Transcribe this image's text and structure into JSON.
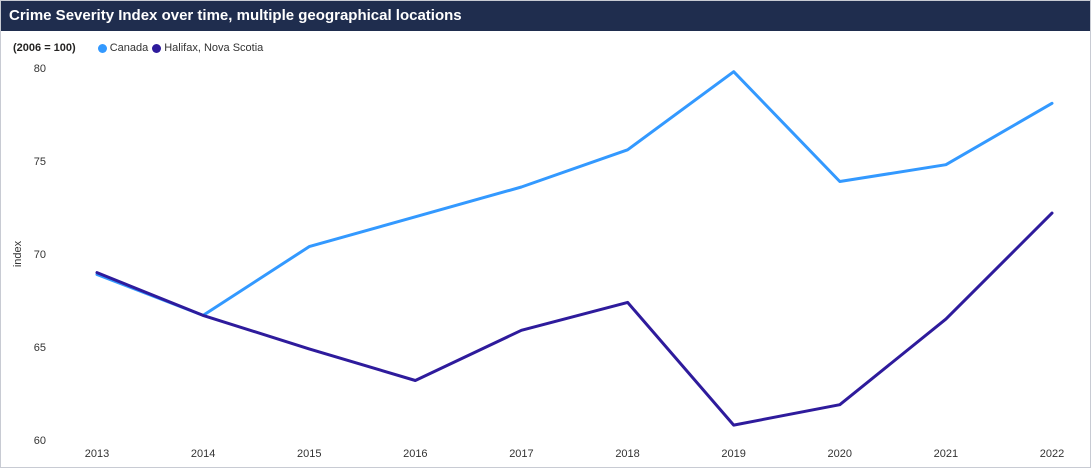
{
  "chart_data": {
    "type": "line",
    "title": "Crime Severity Index over time, multiple geographical locations",
    "unit_label": "(2006 = 100)",
    "ylabel": "index",
    "xlabel": "",
    "x": [
      "2013",
      "2014",
      "2015",
      "2016",
      "2017",
      "2018",
      "2019",
      "2020",
      "2021",
      "2022"
    ],
    "ylim": [
      60,
      80
    ],
    "yticks": [
      60,
      65,
      70,
      75,
      80
    ],
    "grid": false,
    "legend_position": "top-left",
    "series": [
      {
        "name": "Canada",
        "color": "#3399ff",
        "values": [
          68.9,
          66.7,
          70.4,
          72.0,
          73.6,
          75.6,
          79.8,
          73.9,
          74.8,
          78.1
        ]
      },
      {
        "name": "Halifax, Nova Scotia",
        "color": "#2e1b9c",
        "values": [
          69.0,
          66.7,
          64.9,
          63.2,
          65.9,
          67.4,
          60.8,
          61.9,
          66.5,
          72.2
        ]
      }
    ]
  }
}
